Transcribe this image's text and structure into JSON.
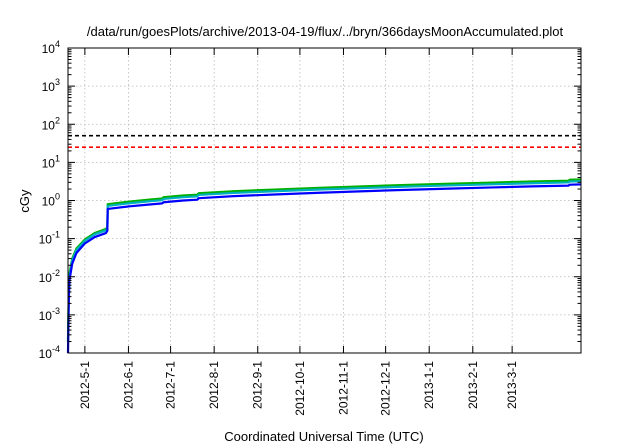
{
  "chart_data": {
    "type": "line",
    "title": "/data/run/goesPlots/archive/2013-04-19/flux/../bryn/366daysMoonAccumulated.plot",
    "xlabel": "Coordinated Universal Time (UTC)",
    "ylabel": "cGy",
    "yscale": "log",
    "ylim": [
      0.0001,
      10000
    ],
    "y_ticks": [
      {
        "value": 0.0001,
        "base": "10",
        "exp": "-4"
      },
      {
        "value": 0.001,
        "base": "10",
        "exp": "-3"
      },
      {
        "value": 0.01,
        "base": "10",
        "exp": "-2"
      },
      {
        "value": 0.1,
        "base": "10",
        "exp": "-1"
      },
      {
        "value": 1,
        "base": "10",
        "exp": "0"
      },
      {
        "value": 10,
        "base": "10",
        "exp": "1"
      },
      {
        "value": 100,
        "base": "10",
        "exp": "2"
      },
      {
        "value": 1000,
        "base": "10",
        "exp": "3"
      },
      {
        "value": 10000,
        "base": "10",
        "exp": "4"
      }
    ],
    "xlim": [
      "2012-04-19",
      "2013-04-19"
    ],
    "x_ticks": [
      {
        "value": "2012-05-01",
        "label": "2012-5-1"
      },
      {
        "value": "2012-06-01",
        "label": "2012-6-1"
      },
      {
        "value": "2012-07-01",
        "label": "2012-7-1"
      },
      {
        "value": "2012-08-01",
        "label": "2012-8-1"
      },
      {
        "value": "2012-09-01",
        "label": "2012-9-1"
      },
      {
        "value": "2012-10-01",
        "label": "2012-10-1"
      },
      {
        "value": "2012-11-01",
        "label": "2012-11-1"
      },
      {
        "value": "2012-12-01",
        "label": "2012-12-1"
      },
      {
        "value": "2013-01-01",
        "label": "2013-1-1"
      },
      {
        "value": "2013-02-01",
        "label": "2013-2-1"
      },
      {
        "value": "2013-03-01",
        "label": "2013-3-1"
      }
    ],
    "grid": true,
    "reference_lines": [
      {
        "y": 50,
        "color": "#000000",
        "style": "dashed"
      },
      {
        "y": 25,
        "color": "#ff0000",
        "style": "dashed"
      }
    ],
    "series": [
      {
        "color": "#00b000",
        "points": [
          [
            "2012-04-19",
            0.0002
          ],
          [
            "2012-04-19T12:00",
            0.003
          ],
          [
            "2012-04-20",
            0.012
          ],
          [
            "2012-04-22",
            0.03
          ],
          [
            "2012-04-25",
            0.055
          ],
          [
            "2012-05-01",
            0.095
          ],
          [
            "2012-05-08",
            0.14
          ],
          [
            "2012-05-16",
            0.18
          ],
          [
            "2012-05-17",
            0.2
          ],
          [
            "2012-05-17T06:00",
            0.8
          ],
          [
            "2012-06-01",
            0.93
          ],
          [
            "2012-06-15",
            1.05
          ],
          [
            "2012-06-25",
            1.13
          ],
          [
            "2012-06-26",
            1.22
          ],
          [
            "2012-07-10",
            1.35
          ],
          [
            "2012-07-20",
            1.42
          ],
          [
            "2012-07-21",
            1.55
          ],
          [
            "2012-08-15",
            1.75
          ],
          [
            "2012-09-15",
            1.95
          ],
          [
            "2012-10-15",
            2.15
          ],
          [
            "2012-11-15",
            2.35
          ],
          [
            "2012-12-15",
            2.55
          ],
          [
            "2013-01-15",
            2.75
          ],
          [
            "2013-02-15",
            2.95
          ],
          [
            "2013-03-15",
            3.15
          ],
          [
            "2013-04-10",
            3.3
          ],
          [
            "2013-04-11",
            3.5
          ],
          [
            "2013-04-19",
            3.55
          ]
        ]
      },
      {
        "color": "#00b0c0",
        "points": [
          [
            "2012-04-19",
            0.0002
          ],
          [
            "2012-04-19T12:00",
            0.0025
          ],
          [
            "2012-04-20",
            0.01
          ],
          [
            "2012-04-22",
            0.027
          ],
          [
            "2012-04-25",
            0.05
          ],
          [
            "2012-05-01",
            0.088
          ],
          [
            "2012-05-08",
            0.13
          ],
          [
            "2012-05-16",
            0.165
          ],
          [
            "2012-05-17",
            0.185
          ],
          [
            "2012-05-17T06:00",
            0.72
          ],
          [
            "2012-06-01",
            0.84
          ],
          [
            "2012-06-15",
            0.95
          ],
          [
            "2012-06-25",
            1.02
          ],
          [
            "2012-06-26",
            1.1
          ],
          [
            "2012-07-10",
            1.22
          ],
          [
            "2012-07-20",
            1.28
          ],
          [
            "2012-07-21",
            1.4
          ],
          [
            "2012-08-15",
            1.58
          ],
          [
            "2012-09-15",
            1.76
          ],
          [
            "2012-10-15",
            1.94
          ],
          [
            "2012-11-15",
            2.12
          ],
          [
            "2012-12-15",
            2.3
          ],
          [
            "2013-01-15",
            2.48
          ],
          [
            "2013-02-15",
            2.66
          ],
          [
            "2013-03-15",
            2.84
          ],
          [
            "2013-04-10",
            2.98
          ],
          [
            "2013-04-11",
            3.15
          ],
          [
            "2013-04-19",
            3.2
          ]
        ]
      },
      {
        "color": "#0000ff",
        "points": [
          [
            "2012-04-19",
            0.0001
          ],
          [
            "2012-04-19T12:00",
            0.002
          ],
          [
            "2012-04-20",
            0.008
          ],
          [
            "2012-04-22",
            0.022
          ],
          [
            "2012-04-25",
            0.042
          ],
          [
            "2012-05-01",
            0.075
          ],
          [
            "2012-05-08",
            0.11
          ],
          [
            "2012-05-16",
            0.14
          ],
          [
            "2012-05-17",
            0.16
          ],
          [
            "2012-05-17T06:00",
            0.6
          ],
          [
            "2012-06-01",
            0.7
          ],
          [
            "2012-06-15",
            0.78
          ],
          [
            "2012-06-25",
            0.84
          ],
          [
            "2012-06-26",
            0.9
          ],
          [
            "2012-07-10",
            1.0
          ],
          [
            "2012-07-20",
            1.05
          ],
          [
            "2012-07-21",
            1.15
          ],
          [
            "2012-08-15",
            1.3
          ],
          [
            "2012-09-15",
            1.45
          ],
          [
            "2012-10-15",
            1.6
          ],
          [
            "2012-11-15",
            1.75
          ],
          [
            "2012-12-15",
            1.9
          ],
          [
            "2013-01-15",
            2.05
          ],
          [
            "2013-02-15",
            2.2
          ],
          [
            "2013-03-15",
            2.35
          ],
          [
            "2013-04-10",
            2.45
          ],
          [
            "2013-04-11",
            2.6
          ],
          [
            "2013-04-19",
            2.65
          ]
        ]
      }
    ]
  }
}
